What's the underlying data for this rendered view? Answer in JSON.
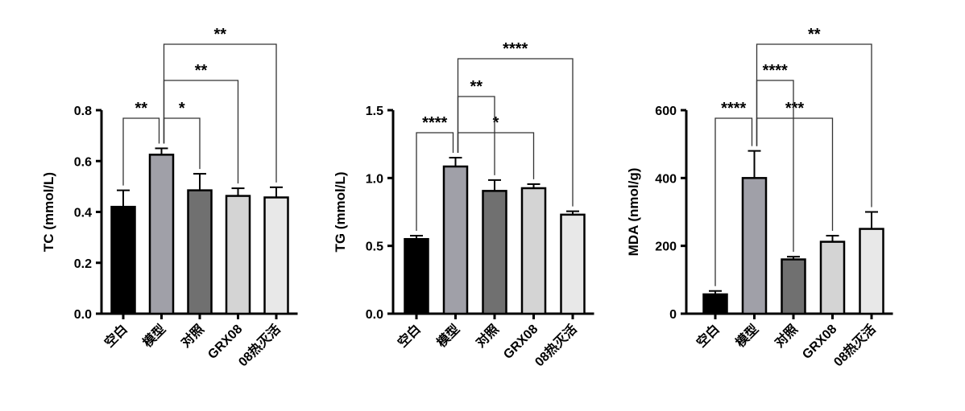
{
  "chart_data": [
    {
      "type": "bar",
      "ylabel": "TC (mmol/L)",
      "ylim": [
        0,
        0.8
      ],
      "yticks": [
        "0.0",
        "0.2",
        "0.4",
        "0.6",
        "0.8"
      ],
      "tick_values": [
        0,
        0.2,
        0.4,
        0.6,
        0.8
      ],
      "categories": [
        "空白",
        "模型",
        "对照",
        "GRX08",
        "08热灭活"
      ],
      "values": [
        0.42,
        0.625,
        0.485,
        0.463,
        0.457
      ],
      "errors": [
        0.065,
        0.025,
        0.065,
        0.03,
        0.04
      ],
      "colors": [
        "#000000",
        "#a0a0a8",
        "#707070",
        "#d4d4d4",
        "#e8e8e8"
      ],
      "brackets": [
        {
          "from": 0,
          "to": 1,
          "label": "**"
        },
        {
          "from": 1,
          "to": 2,
          "label": "*"
        },
        {
          "from": 1,
          "to": 3,
          "label": "**"
        },
        {
          "from": 1,
          "to": 4,
          "label": "**"
        }
      ]
    },
    {
      "type": "bar",
      "ylabel": "TG (mmol/L)",
      "ylim": [
        0,
        1.5
      ],
      "yticks": [
        "0.0",
        "0.5",
        "1.0",
        "1.5"
      ],
      "tick_values": [
        0,
        0.5,
        1.0,
        1.5
      ],
      "categories": [
        "空白",
        "模型",
        "对照",
        "GRX08",
        "08热灭活"
      ],
      "values": [
        0.55,
        1.085,
        0.905,
        0.925,
        0.73
      ],
      "errors": [
        0.025,
        0.065,
        0.08,
        0.03,
        0.025
      ],
      "colors": [
        "#000000",
        "#a0a0a8",
        "#707070",
        "#d4d4d4",
        "#e8e8e8"
      ],
      "brackets": [
        {
          "from": 0,
          "to": 1,
          "label": "****"
        },
        {
          "from": 1,
          "to": 3,
          "label": "*"
        },
        {
          "from": 1,
          "to": 2,
          "label": "**"
        },
        {
          "from": 1,
          "to": 4,
          "label": "****"
        }
      ]
    },
    {
      "type": "bar",
      "ylabel": "MDA (nmol/g)",
      "ylim": [
        0,
        600
      ],
      "yticks": [
        "0",
        "200",
        "400",
        "600"
      ],
      "tick_values": [
        0,
        200,
        400,
        600
      ],
      "categories": [
        "空白",
        "模型",
        "对照",
        "GRX08",
        "08热灭活"
      ],
      "values": [
        57,
        400,
        160,
        212,
        250
      ],
      "errors": [
        10,
        80,
        8,
        18,
        50
      ],
      "colors": [
        "#000000",
        "#a0a0a8",
        "#707070",
        "#d4d4d4",
        "#e8e8e8"
      ],
      "brackets": [
        {
          "from": 0,
          "to": 1,
          "label": "****"
        },
        {
          "from": 1,
          "to": 3,
          "label": "***"
        },
        {
          "from": 1,
          "to": 2,
          "label": "****"
        },
        {
          "from": 1,
          "to": 4,
          "label": "**"
        }
      ]
    }
  ]
}
